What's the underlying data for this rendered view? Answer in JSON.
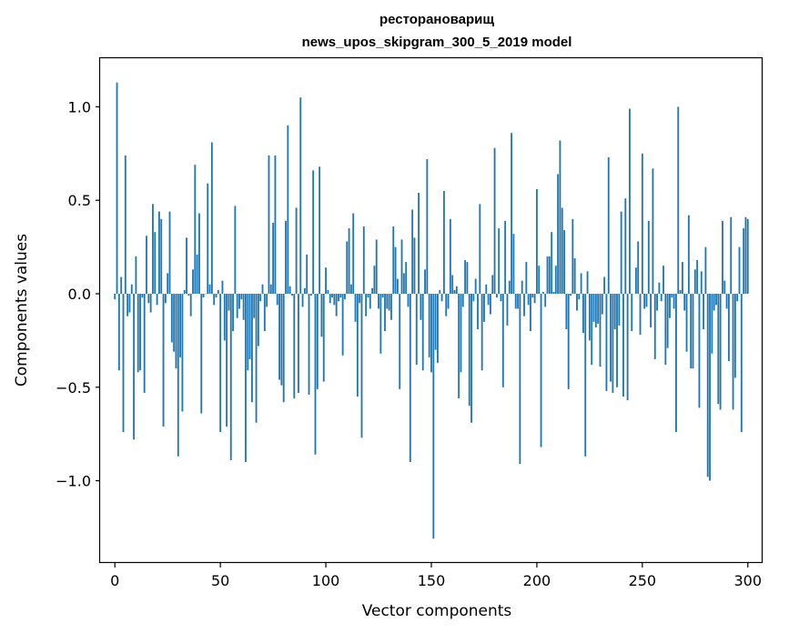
{
  "chart_data": {
    "type": "bar",
    "title_line1": "ресторановарищ",
    "title_line2": "news_upos_skipgram_300_5_2019 model",
    "xlabel": "Vector components",
    "ylabel": "Components values",
    "xlim": [
      -7,
      307
    ],
    "ylim": [
      -1.44,
      1.26
    ],
    "xticks": [
      0,
      50,
      100,
      150,
      200,
      250,
      300
    ],
    "xtick_labels": [
      "0",
      "50",
      "100",
      "150",
      "200",
      "250",
      "300"
    ],
    "yticks": [
      -1.0,
      -0.5,
      0.0,
      0.5,
      1.0
    ],
    "ytick_labels": [
      "−1.0",
      "−0.5",
      "0.0",
      "0.5",
      "1.0"
    ],
    "bar_color": "#1f77b4",
    "grid": false,
    "values": [
      -0.03,
      1.13,
      -0.41,
      0.09,
      -0.74,
      0.74,
      -0.12,
      -0.1,
      0.05,
      -0.78,
      0.2,
      -0.42,
      -0.41,
      -0.02,
      -0.53,
      0.31,
      -0.05,
      -0.1,
      0.48,
      0.33,
      -0.06,
      0.44,
      0.4,
      -0.71,
      -0.05,
      0.11,
      0.44,
      -0.26,
      -0.31,
      -0.4,
      -0.87,
      -0.34,
      -0.63,
      0.02,
      0.3,
      -0.01,
      -0.12,
      0.13,
      0.69,
      0.21,
      0.43,
      -0.64,
      -0.02,
      0.0,
      0.59,
      0.05,
      0.81,
      -0.06,
      -0.02,
      0.02,
      -0.74,
      0.07,
      -0.25,
      -0.71,
      -0.09,
      -0.89,
      -0.2,
      0.47,
      -0.13,
      -0.08,
      -0.03,
      -0.14,
      -0.9,
      -0.41,
      -0.35,
      -0.58,
      -0.13,
      -0.69,
      -0.28,
      -0.04,
      0.05,
      -0.2,
      -0.07,
      0.74,
      0.05,
      0.38,
      0.74,
      -0.06,
      -0.46,
      -0.49,
      -0.58,
      0.39,
      0.9,
      0.04,
      -0.01,
      -0.56,
      0.46,
      -0.53,
      1.05,
      -0.07,
      0.03,
      0.21,
      -0.54,
      -0.01,
      0.66,
      -0.86,
      -0.51,
      0.68,
      -0.23,
      -0.47,
      0.14,
      0.02,
      -0.05,
      -0.02,
      -0.06,
      -0.12,
      -0.04,
      -0.02,
      -0.33,
      -0.03,
      0.28,
      0.35,
      0.05,
      0.43,
      -0.15,
      -0.55,
      -0.05,
      -0.77,
      0.36,
      -0.12,
      -0.02,
      -0.08,
      0.03,
      0.15,
      0.29,
      -0.08,
      -0.32,
      -0.02,
      -0.2,
      -0.08,
      -0.09,
      -0.14,
      0.36,
      0.25,
      0.08,
      -0.51,
      0.29,
      0.11,
      0.17,
      -0.07,
      -0.9,
      0.45,
      0.3,
      -0.38,
      0.54,
      -0.14,
      -0.41,
      0.13,
      0.72,
      -0.34,
      -0.42,
      -1.31,
      -0.3,
      -0.37,
      0.02,
      -0.04,
      0.55,
      -0.12,
      -0.08,
      0.4,
      0.1,
      0.02,
      0.04,
      -0.56,
      -0.42,
      -0.07,
      0.18,
      0.17,
      -0.6,
      -0.69,
      -0.04,
      0.08,
      -0.19,
      0.48,
      -0.41,
      -0.15,
      0.05,
      -0.06,
      -0.11,
      0.1,
      0.78,
      -0.02,
      0.35,
      -0.04,
      -0.5,
      0.39,
      -0.17,
      0.07,
      0.86,
      0.32,
      -0.08,
      -0.08,
      -0.91,
      0.07,
      -0.12,
      0.17,
      -0.06,
      -0.2,
      -0.02,
      -0.05,
      0.56,
      0.15,
      -0.82,
      0.01,
      -0.07,
      0.2,
      0.2,
      0.33,
      0.01,
      0.15,
      0.64,
      0.82,
      0.46,
      0.34,
      -0.19,
      -0.51,
      -0.01,
      0.4,
      0.19,
      -0.09,
      -0.03,
      0.11,
      -0.21,
      -0.87,
      0.12,
      -0.25,
      -0.38,
      -0.15,
      -0.18,
      -0.16,
      -0.39,
      -0.11,
      0.09,
      -0.52,
      0.73,
      -0.47,
      -0.53,
      -0.19,
      -0.5,
      -0.17,
      0.44,
      -0.55,
      0.51,
      -0.57,
      0.99,
      -0.2,
      0.0,
      0.14,
      0.28,
      -0.22,
      0.75,
      -0.08,
      -0.07,
      0.39,
      -0.18,
      0.67,
      -0.35,
      -0.09,
      0.06,
      -0.04,
      0.15,
      -0.38,
      -0.29,
      -0.13,
      -0.02,
      -0.08,
      -0.74,
      1.0,
      0.02,
      0.17,
      -0.09,
      -0.31,
      0.42,
      -0.4,
      -0.4,
      0.13,
      0.18,
      -0.61,
      0.12,
      -0.19,
      0.25,
      -0.98,
      -1.0,
      -0.32,
      -0.09,
      -0.06,
      -0.59,
      -0.62,
      0.39,
      0.07,
      -0.08,
      -0.36,
      0.41,
      -0.62,
      -0.45,
      -0.04,
      0.25,
      -0.74,
      0.35,
      0.41,
      0.4
    ]
  }
}
